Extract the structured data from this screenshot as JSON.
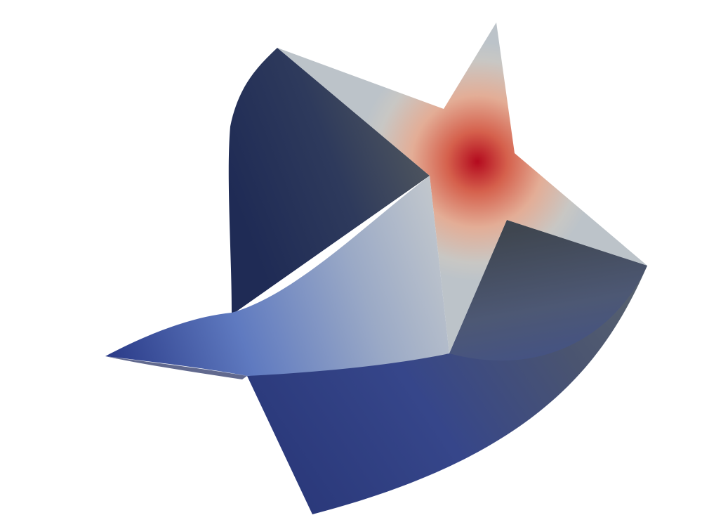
{
  "scene": {
    "background": "#ffffff",
    "colormap": {
      "low": "#2b3a84",
      "mid": "#c3c9cf",
      "high": "#b40a1e",
      "dark_shade": "#3e4a5e"
    }
  }
}
